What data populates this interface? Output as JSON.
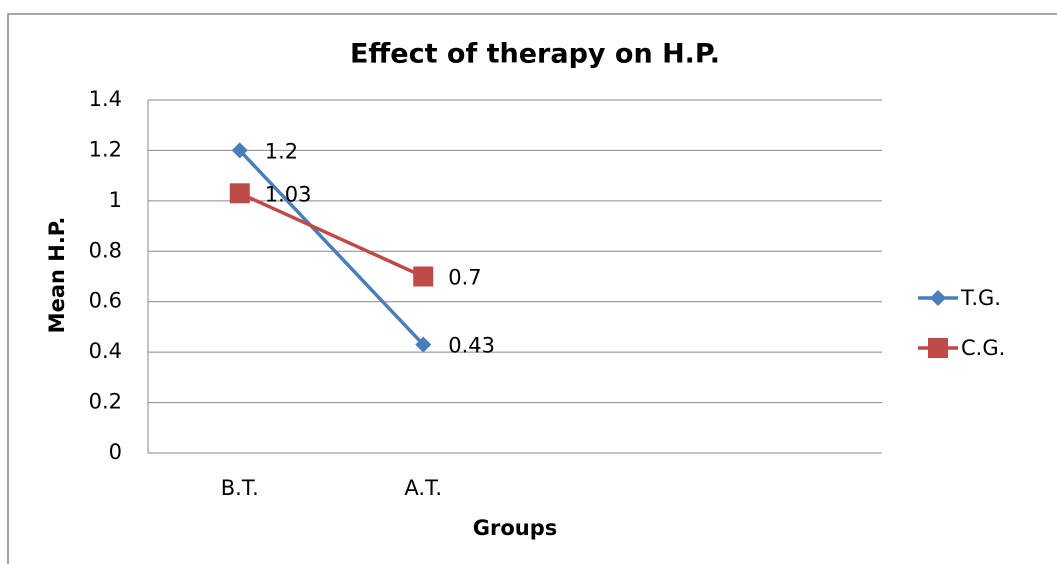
{
  "chart_data": {
    "type": "line",
    "title": "Effect of therapy on H.P.",
    "x_label": "Groups",
    "y_label": "Mean H.P.",
    "categories": [
      "B.T.",
      "A.T.",
      null,
      null
    ],
    "series": [
      {
        "name": "T.G.",
        "color": "#4a7ebb",
        "marker": "diamond",
        "values": [
          1.2,
          0.43,
          null,
          null
        ]
      },
      {
        "name": "C.G.",
        "color": "#be4b48",
        "marker": "square",
        "values": [
          1.03,
          0.7,
          null,
          null
        ]
      }
    ],
    "ylim": [
      0,
      1.4
    ],
    "yticks": [
      0,
      0.2,
      0.4,
      0.6,
      0.8,
      1,
      1.2,
      1.4
    ],
    "grid": true,
    "legend": "right",
    "data_labels": true
  }
}
